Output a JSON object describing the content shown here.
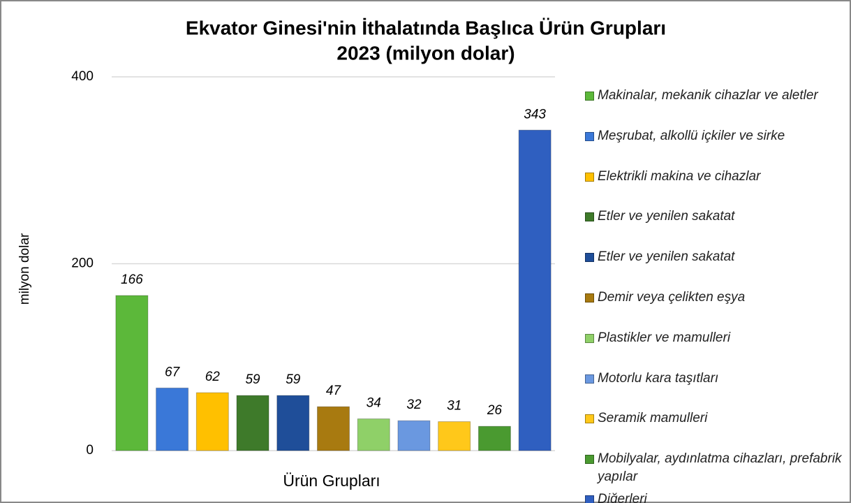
{
  "chart_data": {
    "type": "bar",
    "title": "Ekvator Ginesi'nin İthalatında Başlıca Ürün Grupları",
    "subtitle": "2023 (milyon dolar)",
    "y_label": "milyon dolar",
    "x_label": "Ürün Grupları",
    "ylim": [
      0,
      400
    ],
    "yticks": [
      0,
      200,
      400
    ],
    "grid": true,
    "legend": "right",
    "series": [
      {
        "name": "Makinalar, mekanik cihazlar ve aletler",
        "color": "#5cb83a",
        "values": [
          166
        ]
      },
      {
        "name": "Meşrubat, alkollü içkiler ve sirke",
        "color": "#3a78d8",
        "values": [
          67
        ]
      },
      {
        "name": "Elektrikli makina ve cihazlar",
        "color": "#ffc000",
        "values": [
          62
        ]
      },
      {
        "name": "Etler ve yenilen sakatat",
        "color": "#3e7a2a",
        "values": [
          59
        ]
      },
      {
        "name": "Etler ve yenilen sakatat",
        "color": "#1f4e99",
        "values": [
          59
        ]
      },
      {
        "name": "Demir veya çelikten eşya",
        "color": "#a87a10",
        "values": [
          47
        ]
      },
      {
        "name": "Plastikler ve mamulleri",
        "color": "#8fd068",
        "values": [
          34
        ]
      },
      {
        "name": "Motorlu kara taşıtları",
        "color": "#6a98e0",
        "values": [
          32
        ]
      },
      {
        "name": "Seramik mamulleri",
        "color": "#ffc81a",
        "values": [
          31
        ]
      },
      {
        "name": "Mobilyalar, aydınlatma cihazları, prefabrik yapılar",
        "color": "#4a9a30",
        "values": [
          26
        ]
      },
      {
        "name": "Diğerleri",
        "color": "#2f5fc0",
        "values": [
          343
        ]
      }
    ]
  }
}
